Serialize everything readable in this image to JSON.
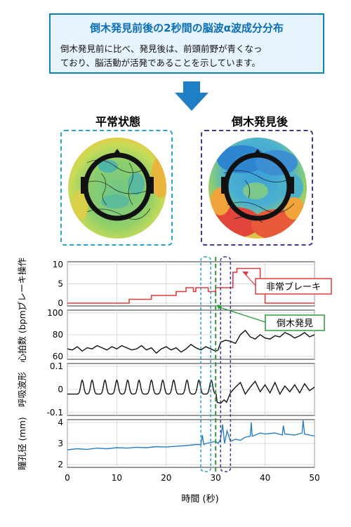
{
  "header": {
    "title": "倒木発見前後の2秒間の脳波α波成分分布",
    "line1": "倒木発見前に比べ、発見後は、前頭前野が青くなっ",
    "line2": "ており、脳活動が活発であることを示しています。"
  },
  "panels": {
    "left_label": "平常状態",
    "right_label": "倒木発見後",
    "left_frame_color": "#29a3c8",
    "right_frame_color": "#3f3c8c"
  },
  "annotations": {
    "brake_label": "非常ブレーキ",
    "brake_color": "#e03c3c",
    "discovery_label": "倒木発見",
    "discovery_color": "#2e9a3c",
    "discovery_time": 30,
    "window_before": [
      27,
      29
    ],
    "window_after": [
      31,
      33
    ]
  },
  "chart_data": {
    "type": "line",
    "xlabel": "時間 (秒)",
    "xlim": [
      0,
      50
    ],
    "xticks": [
      0,
      10,
      20,
      30,
      40,
      50
    ],
    "subplots": [
      {
        "name": "brake",
        "ylabel": "ブレーキ操作",
        "ylim": [
          0,
          10
        ],
        "yticks": [
          0,
          5,
          10
        ],
        "color": "#e03c3c",
        "step": true,
        "x": [
          0,
          12.5,
          12.5,
          17,
          17,
          22,
          22,
          24,
          24,
          25.5,
          25.5,
          26,
          26,
          28.5,
          28.5,
          30,
          30,
          33.5,
          33.5,
          34.3,
          34.3,
          39,
          39,
          40,
          40,
          50
        ],
        "y": [
          0,
          0,
          1,
          1,
          2,
          2,
          3,
          3,
          4,
          4,
          3,
          3,
          4,
          4,
          3,
          3,
          4,
          4,
          8,
          8,
          9,
          9,
          6,
          6,
          0,
          0
        ]
      },
      {
        "name": "heart_rate",
        "ylabel": "心拍数 (bpm)",
        "ylim": [
          60,
          100
        ],
        "yticks": [
          60,
          80,
          100
        ],
        "color": "#111111",
        "x": [
          0,
          1,
          2,
          3,
          4,
          5,
          6,
          7,
          8,
          9,
          10,
          11,
          12,
          13,
          14,
          15,
          16,
          17,
          18,
          19,
          20,
          21,
          22,
          23,
          24,
          25,
          26,
          27,
          28,
          29,
          30,
          30.5,
          31,
          32,
          33,
          34,
          35,
          36,
          37,
          38,
          39,
          40,
          41,
          42,
          43,
          44,
          45,
          46,
          47,
          48,
          49,
          50
        ],
        "y": [
          67,
          66,
          69,
          65,
          68,
          67,
          70,
          68,
          66,
          69,
          67,
          70,
          68,
          66,
          67,
          70,
          66,
          68,
          63,
          67,
          69,
          66,
          68,
          64,
          67,
          71,
          68,
          66,
          69,
          67,
          65,
          66,
          73,
          75,
          74,
          72,
          80,
          84,
          78,
          76,
          80,
          77,
          76,
          79,
          78,
          82,
          80,
          77,
          79,
          82,
          78,
          80
        ]
      },
      {
        "name": "respiration",
        "ylabel": "呼吸波形",
        "ylim": [
          -0.1,
          0.1
        ],
        "yticks": [
          -0.1,
          0,
          0.1
        ],
        "color": "#111111",
        "waveform": "periodic",
        "peak_times": [
          3,
          5,
          7.6,
          10,
          12.2,
          14.5,
          17,
          19.3,
          21.5,
          24.2,
          26.6,
          29.1
        ],
        "peak_value": 0.04,
        "baseline_value": -0.02,
        "post_event": {
          "x": [
            30.3,
            31,
            31.7,
            32.2,
            33,
            34,
            35,
            36,
            37,
            38,
            39,
            40,
            41,
            42,
            43,
            44,
            45,
            46,
            47,
            48,
            49,
            50
          ],
          "y": [
            -0.055,
            -0.06,
            -0.045,
            -0.055,
            -0.015,
            0.01,
            0.03,
            -0.02,
            0.01,
            0.035,
            -0.01,
            0.02,
            -0.015,
            0.03,
            -0.02,
            0.015,
            -0.01,
            0.02,
            -0.015,
            0.025,
            -0.005,
            0.01
          ]
        }
      },
      {
        "name": "pupil",
        "ylabel": "瞳孔径 (mm)",
        "ylim": [
          2,
          4
        ],
        "yticks": [
          2,
          3,
          4
        ],
        "color": "#2c7fbf",
        "x": [
          0,
          2,
          4,
          6,
          8,
          10,
          12,
          14,
          16,
          18,
          20,
          22,
          24,
          26,
          27,
          27.3,
          27.6,
          28,
          29,
          30,
          30.5,
          31,
          31.4,
          31.8,
          32.3,
          33,
          34,
          35,
          36,
          37,
          37.2,
          37.4,
          38,
          39,
          40,
          42,
          43.5,
          43.7,
          44,
          46,
          47.5,
          47.7,
          48,
          50
        ],
        "y": [
          2.7,
          2.75,
          2.72,
          2.78,
          2.75,
          2.8,
          2.78,
          2.82,
          2.8,
          2.85,
          2.83,
          2.87,
          2.9,
          2.95,
          2.95,
          3.4,
          2.95,
          3.0,
          3.05,
          3.1,
          3.0,
          3.2,
          3.9,
          3.0,
          3.6,
          3.1,
          3.2,
          3.15,
          3.3,
          3.35,
          4.0,
          3.35,
          3.4,
          3.5,
          3.45,
          3.5,
          3.4,
          3.85,
          3.45,
          3.4,
          3.5,
          4.1,
          3.45,
          3.35
        ]
      }
    ]
  }
}
